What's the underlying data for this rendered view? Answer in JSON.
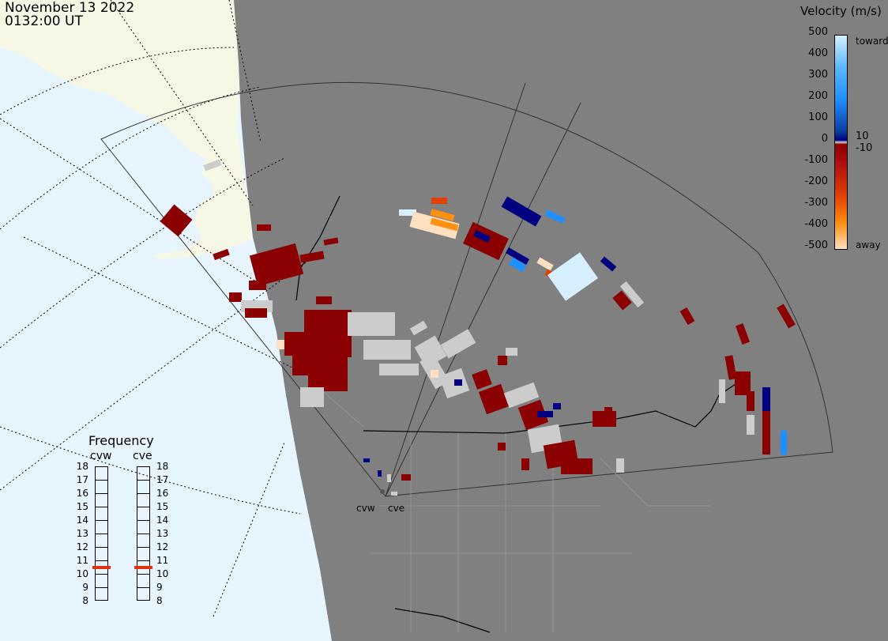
{
  "header": {
    "date": "November 13 2022",
    "time": "0132:00 UT"
  },
  "legend": {
    "title": "Velocity (m/s)",
    "ticks": [
      "500",
      "400",
      "300",
      "200",
      "100",
      "0",
      "-100",
      "-200",
      "-300",
      "-400",
      "-500"
    ],
    "markers": [
      "toward",
      "10",
      "-10",
      "away"
    ],
    "colors": {
      "toward_max": "#d6f0ff",
      "toward_mid": "#1e90ff",
      "toward_low": "#000080",
      "away_low": "#8b0000",
      "away_mid": "#e04000",
      "away_high": "#ff9010",
      "away_max": "#ffe0c0",
      "gray": "#cccccc"
    }
  },
  "frequency": {
    "title": "Frequency",
    "radars": [
      "cvw",
      "cve"
    ],
    "scale": [
      "18",
      "17",
      "16",
      "15",
      "14",
      "13",
      "12",
      "11",
      "10",
      "9",
      "8"
    ],
    "cvw_mhz": 10.5,
    "cve_mhz": 10.5,
    "indicator_color": "#e03010"
  },
  "map": {
    "radar_labels": [
      "cvw",
      "cve"
    ],
    "land_color": "#808080",
    "ocean_color": "#e6f5ff",
    "alaska_color": "#f7f7e6"
  }
}
